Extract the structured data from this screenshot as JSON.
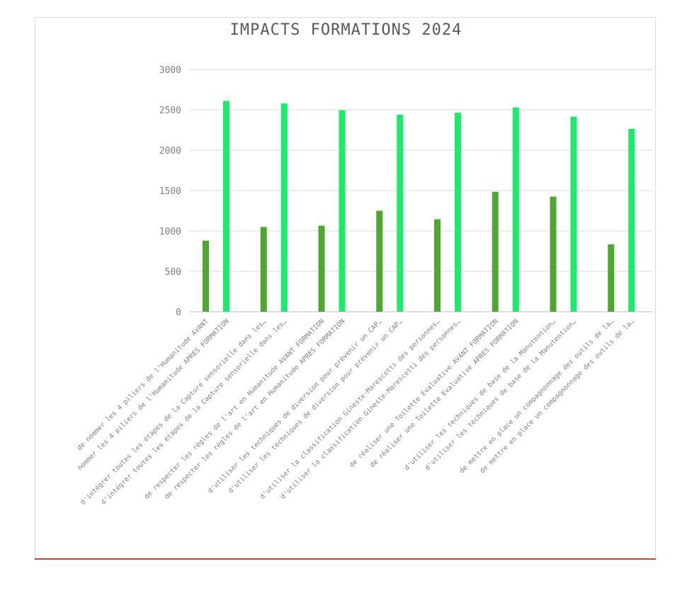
{
  "chart_data": {
    "type": "bar",
    "title": "IMPACTS FORMATIONS 2024",
    "xlabel": "",
    "ylabel": "",
    "ylim": [
      0,
      3000
    ],
    "yticks": [
      0,
      500,
      1000,
      1500,
      2000,
      2500,
      3000
    ],
    "grid": true,
    "legend": "none",
    "colors": {
      "avant": "#4ea72e",
      "apres": "#1aeb6a",
      "grid": "#d9d9d9",
      "axis": "#bfbfbf"
    },
    "categories": [
      "de nommer les 4 piliers de l'Humanitude AVANT",
      "nommer les 4 piliers de l'Humanitude APRES FORMATION",
      "d'intégrer toutes les étapes de la Capture sensorielle dans les…",
      "d'intégrer toutes les étapes de la Capture sensorielle dans les…",
      "de respecter les règles de l'art en Humanitude AVANT FORMATION",
      "de respecter les règles de l'art en Humanitude APRES FORMATION",
      "d'utiliser les techniques de diversion pour prévenir un CAP…",
      "d'utiliser les techniques de diversion pour prévenir un CAP…",
      "d'utiliser la classification Gineste-Marescotti des personnes…",
      "d'utiliser la classification Gineste-Marescotti des personnes…",
      "de réaliser une Toilette Evaluative AVANT FORMATION",
      "de réaliser une Toilette Evaluative APRES FORMATION",
      "d'utiliser les techniques de base de la Manutention…",
      "d'utiliser les techniques de base de la Manutention…",
      "de mettre en place un compagnonnage des outils de la…",
      "de mettre en place un compagnonnage des outils de la…"
    ],
    "values": [
      880,
      2610,
      1050,
      2580,
      1065,
      2495,
      1250,
      2440,
      1145,
      2465,
      1485,
      2530,
      1425,
      2415,
      835,
      2265
    ],
    "series_kind": [
      "avant",
      "apres",
      "avant",
      "apres",
      "avant",
      "apres",
      "avant",
      "apres",
      "avant",
      "apres",
      "avant",
      "apres",
      "avant",
      "apres",
      "avant",
      "apres"
    ]
  }
}
